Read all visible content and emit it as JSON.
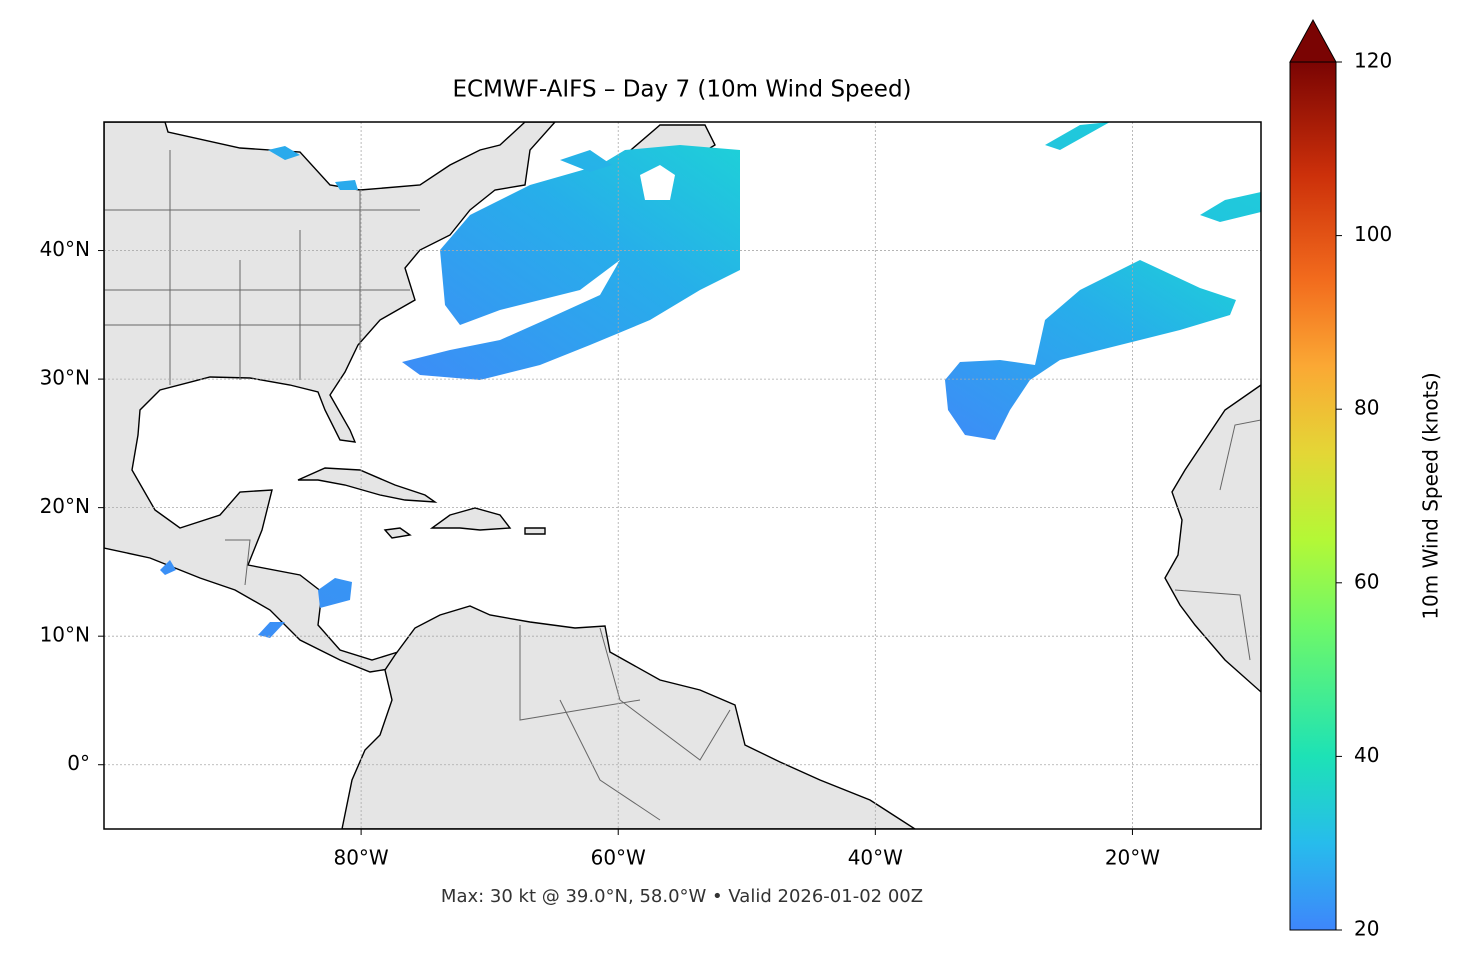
{
  "map": {
    "title": "ECMWF-AIFS – Day 7 (10m Wind Speed)",
    "lonlim": [
      -100,
      -10
    ],
    "latlim": [
      -5,
      50
    ],
    "lonticks": [
      {
        "value": -80,
        "label": "80°W"
      },
      {
        "value": -60,
        "label": "60°W"
      },
      {
        "value": -40,
        "label": "40°W"
      },
      {
        "value": -20,
        "label": "20°W"
      }
    ],
    "latticks": [
      {
        "value": 0,
        "label": "0°"
      },
      {
        "value": 10,
        "label": "10°N"
      },
      {
        "value": 20,
        "label": "20°N"
      },
      {
        "value": 30,
        "label": "30°N"
      },
      {
        "value": 40,
        "label": "40°N"
      }
    ],
    "colorbar": {
      "label": "10m Wind Speed (knots)",
      "lim": [
        20,
        120
      ],
      "ticks": [
        20,
        40,
        60,
        80,
        100,
        120
      ]
    },
    "footer": "Max: 30 kt @ 39.0°N, 58.0°W • Valid 2026-01-02 00Z"
  }
}
